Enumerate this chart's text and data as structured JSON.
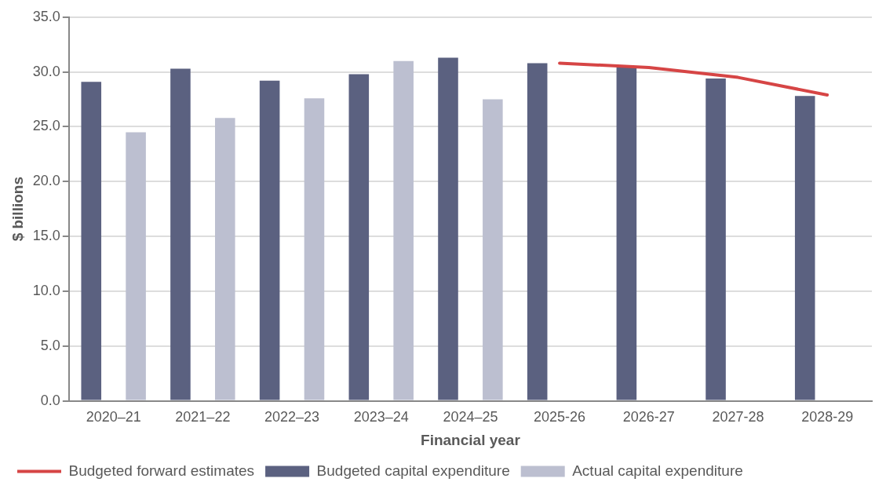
{
  "chart_data": {
    "type": "bar",
    "xlabel": "Financial year",
    "ylabel": "$ billions",
    "categories": [
      "2020–21",
      "2021–22",
      "2022–23",
      "2023–24",
      "2024–25",
      "2025-26",
      "2026-27",
      "2027-28",
      "2028-29"
    ],
    "series": [
      {
        "name": "Budgeted capital expenditure",
        "color": "#5b6180",
        "values": [
          29.1,
          30.3,
          29.2,
          29.8,
          31.3,
          30.8,
          30.4,
          29.4,
          27.8
        ]
      },
      {
        "name": "Actual capital expenditure",
        "color": "#bcbfd0",
        "values": [
          24.5,
          25.8,
          27.6,
          31.0,
          27.5,
          null,
          null,
          null,
          null
        ]
      },
      {
        "name": "Budgeted forward estimates",
        "type": "line",
        "color": "#d64545",
        "values": [
          null,
          null,
          null,
          null,
          null,
          30.8,
          30.4,
          29.5,
          27.9
        ]
      }
    ],
    "ylim": [
      0,
      35
    ],
    "yticks": [
      {
        "value": 0,
        "label": "0.0"
      },
      {
        "value": 5,
        "label": "5.0"
      },
      {
        "value": 10,
        "label": "10.0"
      },
      {
        "value": 15,
        "label": "15.0"
      },
      {
        "value": 20,
        "label": "20.0"
      },
      {
        "value": 25,
        "label": "25.0"
      },
      {
        "value": 30,
        "label": "30.0"
      },
      {
        "value": 35,
        "label": "35.0"
      }
    ],
    "grid": "y",
    "legend": "bottom",
    "marker": "none",
    "line_style": "solid"
  }
}
